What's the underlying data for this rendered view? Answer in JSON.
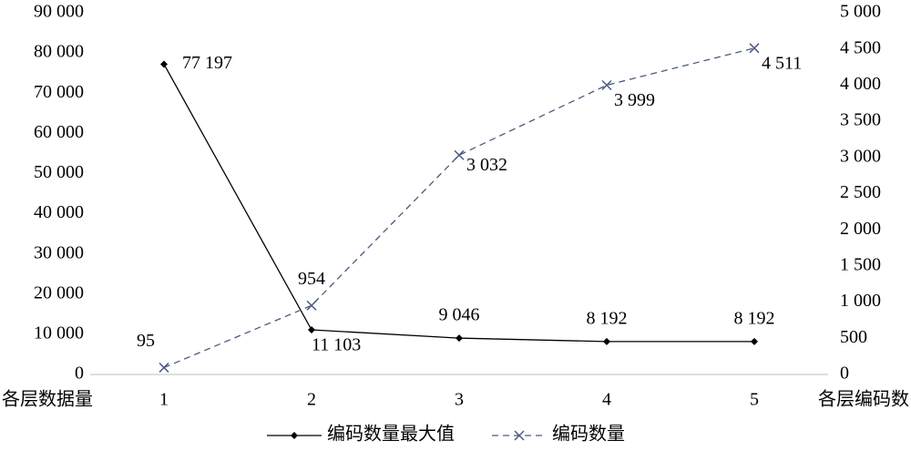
{
  "chart_data": {
    "type": "line",
    "categories": [
      "1",
      "2",
      "3",
      "4",
      "5"
    ],
    "y_label": "各层数据量",
    "y2_label": "各层编码数",
    "series": [
      {
        "name": "编码数量最大值",
        "color": "#000000",
        "line_style": "solid",
        "marker": "diamond",
        "values": [
          77197,
          11103,
          9046,
          8192,
          8192
        ],
        "value_labels": [
          "77 197",
          "11 103",
          "9 046",
          "8 192",
          "8 192"
        ]
      },
      {
        "name": "编码数量",
        "color": "#4a5a80",
        "line_style": "dashed",
        "marker": "x",
        "axis": "y2",
        "values": [
          95,
          954,
          3032,
          3999,
          4511
        ],
        "value_labels": [
          "95",
          "954",
          "3 032",
          "3 999",
          "4 511"
        ]
      }
    ],
    "ylim": [
      0,
      90000
    ],
    "yticks": [
      0,
      {
        "value": 10000,
        "label": "10 000"
      },
      {
        "value": 20000,
        "label": "20 000"
      },
      {
        "value": 30000,
        "label": "30 000"
      },
      {
        "value": 40000,
        "label": "40 000"
      },
      {
        "value": 50000,
        "label": "50 000"
      },
      {
        "value": 60000,
        "label": "60 000"
      },
      {
        "value": 70000,
        "label": "70 000"
      },
      {
        "value": 80000,
        "label": "80 000"
      },
      {
        "value": 90000,
        "label": "90 000"
      }
    ],
    "y2lim": [
      0,
      5000
    ],
    "y2ticks": [
      0,
      500,
      {
        "value": 1000,
        "label": "1 000"
      },
      {
        "value": 1500,
        "label": "1 500"
      },
      {
        "value": 2000,
        "label": "2 000"
      },
      {
        "value": 2500,
        "label": "2 500"
      },
      {
        "value": 3000,
        "label": "3 000"
      },
      {
        "value": 3500,
        "label": "3 500"
      },
      {
        "value": 4000,
        "label": "4 000"
      },
      {
        "value": 4500,
        "label": "4 500"
      },
      {
        "value": 5000,
        "label": "5 000"
      }
    ],
    "grid": false,
    "legend": "bottom"
  }
}
